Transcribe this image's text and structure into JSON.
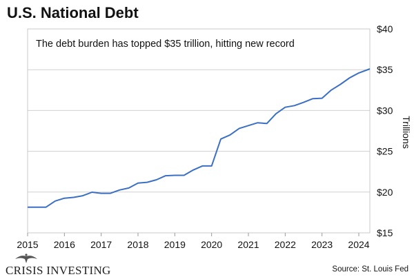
{
  "chart_data": {
    "type": "line",
    "title": "U.S. National Debt",
    "subtitle": "The debt burden has topped $35 trillion, hitting new record",
    "xlabel": "",
    "ylabel": "Trillions",
    "xlim": [
      2015,
      2024.3
    ],
    "ylim": [
      15,
      40
    ],
    "x_ticks": [
      2015,
      2016,
      2017,
      2018,
      2019,
      2020,
      2021,
      2022,
      2023,
      2024
    ],
    "x_tick_labels": [
      "2015",
      "2016",
      "2017",
      "2018",
      "2019",
      "2020",
      "2021",
      "2022",
      "2023",
      "2024"
    ],
    "y_ticks": [
      15,
      20,
      25,
      30,
      35,
      40
    ],
    "y_tick_labels": [
      "$15",
      "$20",
      "$25",
      "$30",
      "$35",
      "$40"
    ],
    "series": [
      {
        "name": "U.S. National Debt",
        "color": "#3a6fc4",
        "x": [
          2015.0,
          2015.25,
          2015.5,
          2015.75,
          2016.0,
          2016.25,
          2016.5,
          2016.75,
          2017.0,
          2017.25,
          2017.5,
          2017.75,
          2018.0,
          2018.25,
          2018.5,
          2018.75,
          2019.0,
          2019.25,
          2019.5,
          2019.75,
          2020.0,
          2020.25,
          2020.5,
          2020.75,
          2021.0,
          2021.25,
          2021.5,
          2021.75,
          2022.0,
          2022.25,
          2022.5,
          2022.75,
          2023.0,
          2023.25,
          2023.5,
          2023.75,
          2024.0,
          2024.3
        ],
        "values": [
          18.15,
          18.15,
          18.15,
          18.9,
          19.25,
          19.35,
          19.55,
          19.98,
          19.85,
          19.85,
          20.25,
          20.5,
          21.1,
          21.2,
          21.5,
          22.0,
          22.05,
          22.05,
          22.7,
          23.2,
          23.2,
          26.5,
          27.0,
          27.8,
          28.15,
          28.5,
          28.4,
          29.6,
          30.4,
          30.6,
          31.0,
          31.45,
          31.5,
          32.5,
          33.2,
          34.0,
          34.6,
          35.1
        ]
      }
    ]
  },
  "brand": {
    "logo_text": "CRISIS INVESTING"
  },
  "source": "Source: St. Louis Fed"
}
